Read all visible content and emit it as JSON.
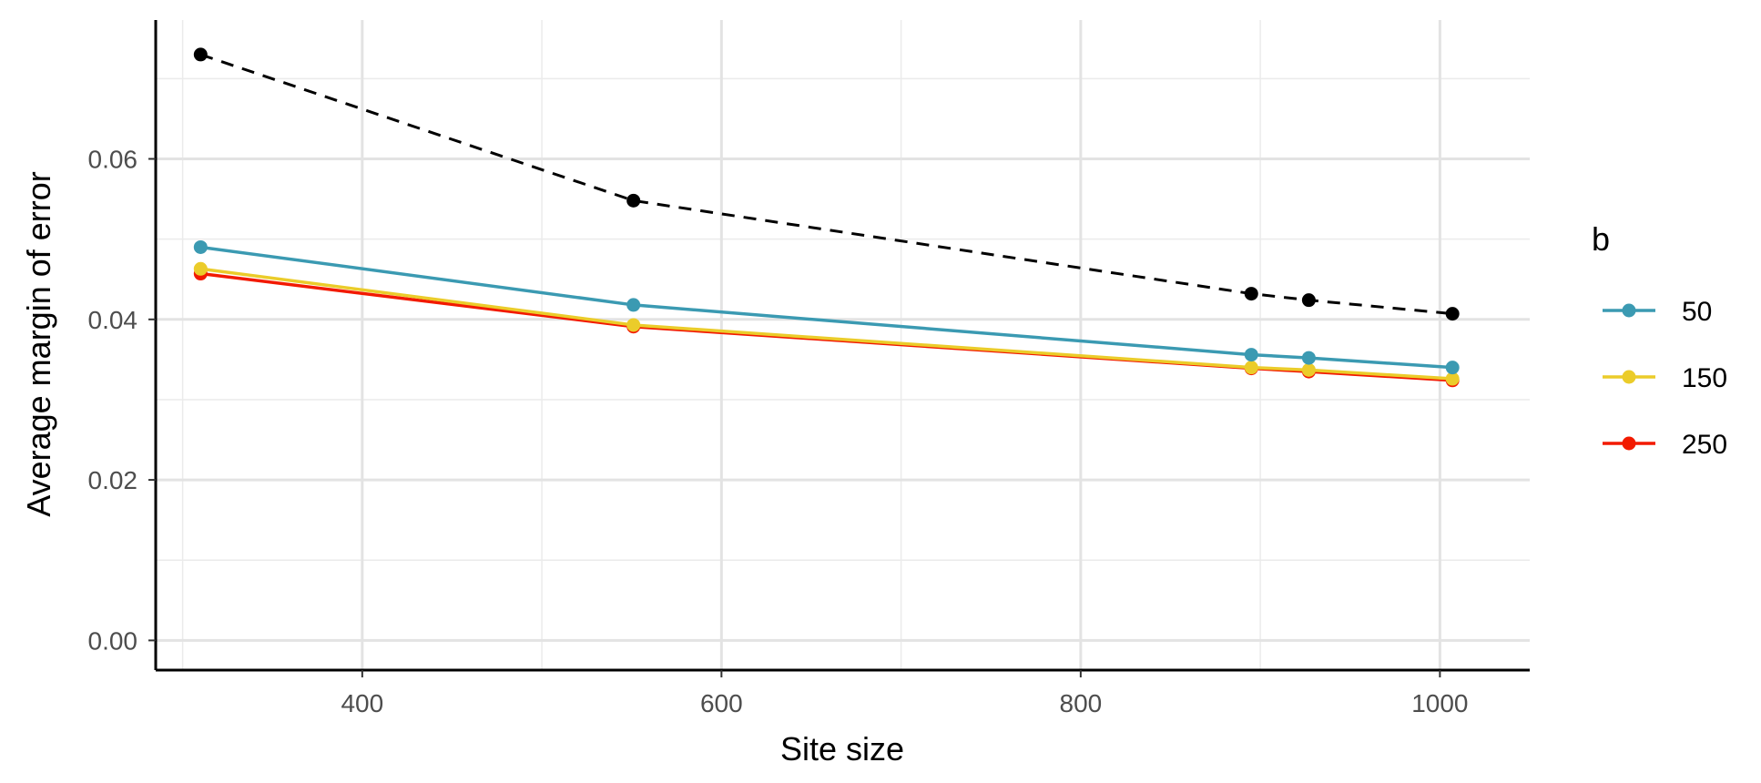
{
  "chart_data": {
    "type": "line",
    "xlabel": "Site size",
    "ylabel": "Average margin of error",
    "xlim": [
      285,
      1050
    ],
    "ylim": [
      -0.0037,
      0.0773
    ],
    "x_ticks": [
      400,
      600,
      800,
      1000
    ],
    "x_tick_labels": [
      "400",
      "600",
      "800",
      "1000"
    ],
    "y_ticks": [
      0.0,
      0.02,
      0.04,
      0.06
    ],
    "y_tick_labels": [
      "0.00",
      "0.02",
      "0.04",
      "0.06"
    ],
    "x_minor_grid": [
      300,
      500,
      700,
      900
    ],
    "y_minor_grid": [
      0.01,
      0.03,
      0.05,
      0.07
    ],
    "grid": true,
    "legend": {
      "title": "b",
      "placement": "right"
    },
    "x": [
      310,
      551,
      895,
      927,
      1007
    ],
    "reference_series": {
      "style": "dashed",
      "color": "#000000",
      "values": [
        0.073,
        0.0548,
        0.0432,
        0.0424,
        0.0407
      ]
    },
    "series": [
      {
        "name": "50",
        "color": "#3B9AB2",
        "values": [
          0.049,
          0.0418,
          0.0356,
          0.0352,
          0.034
        ]
      },
      {
        "name": "150",
        "color": "#EBCC2A",
        "values": [
          0.0463,
          0.0393,
          0.034,
          0.0337,
          0.0326
        ]
      },
      {
        "name": "250",
        "color": "#F21A00",
        "values": [
          0.0457,
          0.0391,
          0.0339,
          0.0335,
          0.0324
        ]
      }
    ]
  }
}
